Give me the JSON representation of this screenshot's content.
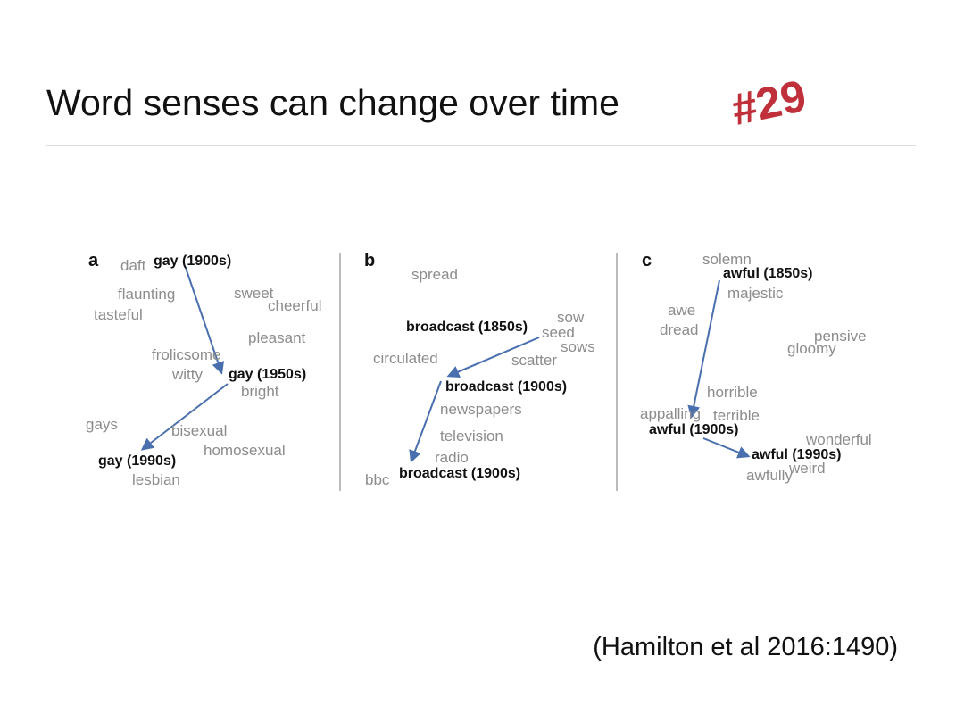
{
  "title": "Word senses can change over time",
  "badge": "#29",
  "figure": {
    "panels": [
      {
        "label": "a",
        "keywords": [
          "gay (1900s)",
          "gay (1950s)",
          "gay (1990s)"
        ],
        "words": [
          "daft",
          "flaunting",
          "sweet",
          "cheerful",
          "tasteful",
          "pleasant",
          "frolicsome",
          "witty",
          "bright",
          "gays",
          "bisexual",
          "homosexual",
          "lesbian"
        ]
      },
      {
        "label": "b",
        "keywords": [
          "broadcast (1850s)",
          "broadcast (1900s)",
          "broadcast (1900s)"
        ],
        "words": [
          "spread",
          "sow",
          "seed",
          "sows",
          "circulated",
          "scatter",
          "newspapers",
          "television",
          "radio",
          "bbc"
        ]
      },
      {
        "label": "c",
        "keywords": [
          "awful (1850s)",
          "awful (1900s)",
          "awful (1990s)"
        ],
        "words": [
          "solemn",
          "majestic",
          "awe",
          "dread",
          "pensive",
          "gloomy",
          "horrible",
          "appalling",
          "terrible",
          "wonderful",
          "weird",
          "awfully"
        ]
      }
    ]
  },
  "citation": "(Hamilton et al 2016:1490)"
}
